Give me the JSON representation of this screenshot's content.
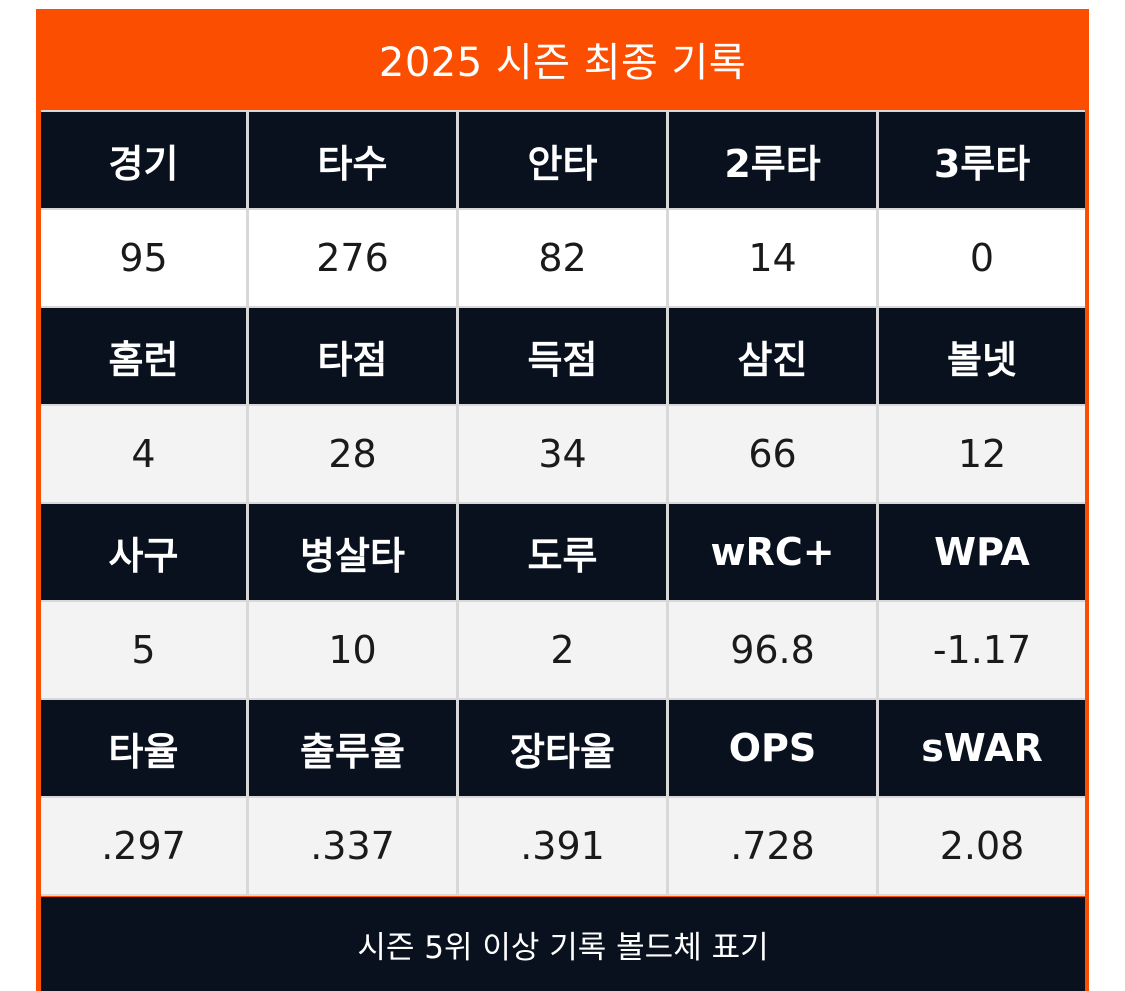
{
  "title": "2025 시즌 최종 기록",
  "rows": [
    {
      "headers": [
        "경기",
        "타수",
        "안타",
        "2루타",
        "3루타"
      ],
      "values": [
        "95",
        "276",
        "82",
        "14",
        "0"
      ]
    },
    {
      "headers": [
        "홈런",
        "타점",
        "득점",
        "삼진",
        "볼넷"
      ],
      "values": [
        "4",
        "28",
        "34",
        "66",
        "12"
      ]
    },
    {
      "headers": [
        "사구",
        "병살타",
        "도루",
        "wRC+",
        "WPA"
      ],
      "values": [
        "5",
        "10",
        "2",
        "96.8",
        "-1.17"
      ]
    },
    {
      "headers": [
        "타율",
        "출루율",
        "장타율",
        "OPS",
        "sWAR"
      ],
      "values": [
        ".297",
        ".337",
        ".391",
        ".728",
        "2.08"
      ]
    }
  ],
  "footer": "시즌 5위 이상 기록 볼드체 표기",
  "colors": {
    "accent": "#fc4e00",
    "header_bg": "#09111f",
    "value_bg": "#f3f3f3",
    "grid_line": "#d8d8d8"
  }
}
